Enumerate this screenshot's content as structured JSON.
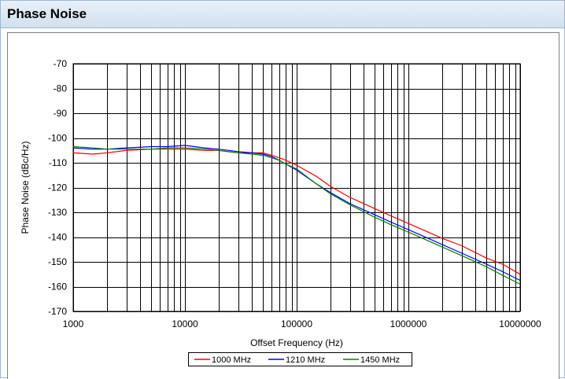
{
  "panel": {
    "title": "Phase Noise"
  },
  "colors": {
    "header_bg": "#d2e0ee",
    "grid": "#000000"
  },
  "chart_data": {
    "type": "line",
    "title": "",
    "xlabel": "Offset Frequency (Hz)",
    "ylabel": "Phase Noise (dBc/Hz)",
    "xscale": "log",
    "xlim": [
      1000,
      10000000
    ],
    "ylim": [
      -170,
      -70
    ],
    "x_ticks": [
      "1000",
      "10000",
      "100000",
      "1000000",
      "10000000"
    ],
    "y_ticks": [
      "-70",
      "-80",
      "-90",
      "-100",
      "-110",
      "-120",
      "-130",
      "-140",
      "-150",
      "-160",
      "-170"
    ],
    "grid": true,
    "legend_position": "bottom",
    "series": [
      {
        "name": "1000 MHz",
        "color": "#ff0000",
        "x": [
          1000,
          1500,
          2000,
          3000,
          5000,
          7000,
          10000,
          15000,
          20000,
          30000,
          40000,
          50000,
          60000,
          70000,
          80000,
          100000,
          150000,
          200000,
          300000,
          500000,
          700000,
          1000000,
          1500000,
          2000000,
          3000000,
          5000000,
          7000000,
          10000000
        ],
        "y": [
          -106,
          -106.5,
          -106,
          -105,
          -104.5,
          -104.5,
          -104.5,
          -105,
          -105,
          -106,
          -106,
          -106,
          -107,
          -108,
          -109,
          -111,
          -115.5,
          -119.5,
          -124,
          -128.5,
          -131.5,
          -134.5,
          -138,
          -140.5,
          -143.5,
          -148.5,
          -151,
          -155
        ]
      },
      {
        "name": "1210 MHz",
        "color": "#0000ff",
        "x": [
          1000,
          1500,
          2000,
          3000,
          5000,
          7000,
          10000,
          15000,
          20000,
          30000,
          40000,
          50000,
          60000,
          70000,
          80000,
          100000,
          150000,
          200000,
          300000,
          500000,
          700000,
          1000000,
          1500000,
          2000000,
          3000000,
          5000000,
          7000000,
          10000000
        ],
        "y": [
          -104,
          -104.5,
          -104.5,
          -104,
          -103.5,
          -103.5,
          -103,
          -104,
          -104.5,
          -105.5,
          -106,
          -106.5,
          -107.5,
          -109,
          -110.5,
          -113,
          -118.5,
          -122,
          -126.5,
          -131,
          -134,
          -137,
          -140.5,
          -143,
          -146.5,
          -151,
          -154,
          -157.5
        ]
      },
      {
        "name": "1450 MHz",
        "color": "#008000",
        "x": [
          1000,
          1500,
          2000,
          3000,
          5000,
          7000,
          10000,
          15000,
          20000,
          30000,
          40000,
          50000,
          60000,
          70000,
          80000,
          100000,
          150000,
          200000,
          300000,
          500000,
          700000,
          1000000,
          1500000,
          2000000,
          3000000,
          5000000,
          7000000,
          10000000
        ],
        "y": [
          -103.5,
          -104,
          -104.5,
          -104.5,
          -104.5,
          -104,
          -104,
          -104.5,
          -105,
          -106,
          -106.5,
          -107,
          -108,
          -109,
          -110.5,
          -112.5,
          -118.5,
          -122.5,
          -127,
          -132,
          -135,
          -138,
          -141.5,
          -144,
          -147.5,
          -152,
          -155.5,
          -159
        ]
      }
    ]
  }
}
